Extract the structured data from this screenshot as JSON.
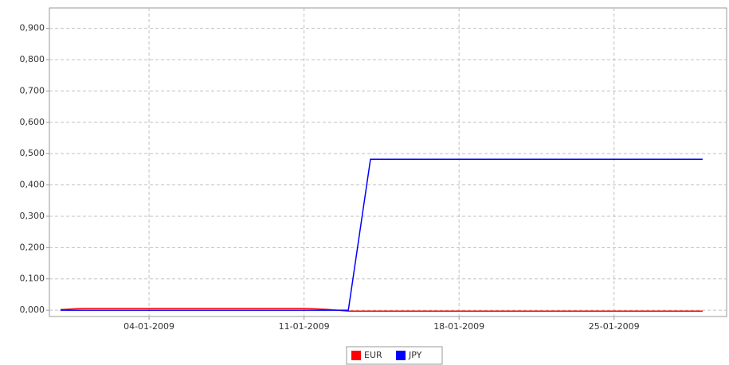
{
  "chart_data": {
    "type": "line",
    "x": [
      "2008-12-31",
      "2009-01-01",
      "2009-01-02",
      "2009-01-03",
      "2009-01-04",
      "2009-01-05",
      "2009-01-06",
      "2009-01-07",
      "2009-01-08",
      "2009-01-09",
      "2009-01-10",
      "2009-01-11",
      "2009-01-12",
      "2009-01-13",
      "2009-01-14",
      "2009-01-15",
      "2009-01-16",
      "2009-01-17",
      "2009-01-18",
      "2009-01-19",
      "2009-01-20",
      "2009-01-21",
      "2009-01-22",
      "2009-01-23",
      "2009-01-24",
      "2009-01-25",
      "2009-01-26",
      "2009-01-27",
      "2009-01-28",
      "2009-01-29"
    ],
    "series": [
      {
        "name": "EUR",
        "color": "#ff0000",
        "values": [
          0.002,
          0.006,
          0.006,
          0.006,
          0.006,
          0.006,
          0.006,
          0.006,
          0.006,
          0.006,
          0.006,
          0.006,
          0.003,
          -0.003,
          -0.003,
          -0.003,
          -0.003,
          -0.003,
          -0.003,
          -0.003,
          -0.003,
          -0.003,
          -0.003,
          -0.003,
          -0.003,
          -0.003,
          -0.003,
          -0.003,
          -0.003,
          -0.003
        ]
      },
      {
        "name": "JPY",
        "color": "#0000ff",
        "values": [
          0,
          0,
          0,
          0,
          0,
          0,
          0,
          0,
          0,
          0,
          0,
          0,
          0,
          0,
          0.482,
          0.482,
          0.482,
          0.482,
          0.482,
          0.482,
          0.482,
          0.482,
          0.482,
          0.482,
          0.482,
          0.482,
          0.482,
          0.482,
          0.482,
          0.482
        ]
      }
    ],
    "xlim": [
      "2008-12-30T12:00:00Z",
      "2009-01-30T02:00:00Z"
    ],
    "xticks": [
      {
        "value": "2009-01-04",
        "label": "04-01-2009"
      },
      {
        "value": "2009-01-11",
        "label": "11-01-2009"
      },
      {
        "value": "2009-01-18",
        "label": "18-01-2009"
      },
      {
        "value": "2009-01-25",
        "label": "25-01-2009"
      }
    ],
    "ylim": [
      -0.02,
      0.965
    ],
    "yticks": [
      {
        "value": 0,
        "label": "0,000"
      },
      {
        "value": 0.1,
        "label": "0,100"
      },
      {
        "value": 0.2,
        "label": "0,200"
      },
      {
        "value": 0.3,
        "label": "0,300"
      },
      {
        "value": 0.4,
        "label": "0,400"
      },
      {
        "value": 0.5,
        "label": "0,500"
      },
      {
        "value": 0.6,
        "label": "0,600"
      },
      {
        "value": 0.7,
        "label": "0,700"
      },
      {
        "value": 0.8,
        "label": "0,800"
      },
      {
        "value": 0.9,
        "label": "0,900"
      }
    ],
    "grid": true,
    "legend": "bottom"
  }
}
